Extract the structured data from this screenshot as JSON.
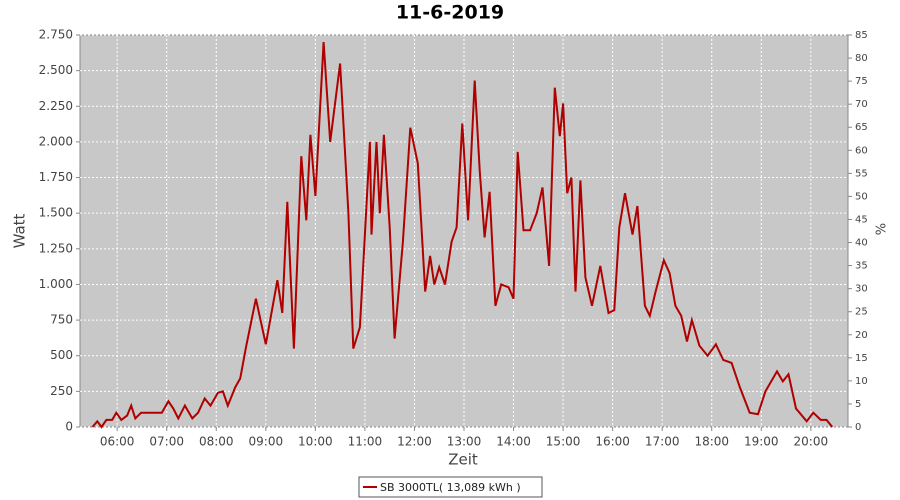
{
  "chart_data": {
    "type": "line",
    "title": "11-6-2019",
    "x_label": "Zeit",
    "y_label": "Watt",
    "y2_label": "%",
    "x": [
      "05:30",
      "05:36",
      "05:41",
      "05:47",
      "05:54",
      "05:59",
      "06:05",
      "06:12",
      "06:17",
      "06:22",
      "06:29",
      "06:38",
      "06:47",
      "06:54",
      "07:02",
      "07:08",
      "07:14",
      "07:22",
      "07:31",
      "07:38",
      "07:46",
      "07:53",
      "08:02",
      "08:08",
      "08:14",
      "08:23",
      "08:29",
      "08:36",
      "08:48",
      "09:00",
      "09:14",
      "09:20",
      "09:26",
      "09:34",
      "09:43",
      "09:49",
      "09:54",
      "10:00",
      "10:10",
      "10:18",
      "10:30",
      "10:40",
      "10:46",
      "10:54",
      "11:06",
      "11:08",
      "11:14",
      "11:18",
      "11:23",
      "11:30",
      "11:36",
      "11:46",
      "11:55",
      "12:04",
      "12:13",
      "12:19",
      "12:24",
      "12:30",
      "12:37",
      "12:45",
      "12:51",
      "12:58",
      "13:05",
      "13:13",
      "13:19",
      "13:25",
      "13:31",
      "13:38",
      "13:45",
      "13:54",
      "14:00",
      "14:05",
      "14:12",
      "14:20",
      "14:28",
      "14:35",
      "14:43",
      "14:50",
      "14:56",
      "15:00",
      "15:05",
      "15:10",
      "15:15",
      "15:21",
      "15:27",
      "15:35",
      "15:45",
      "15:55",
      "16:02",
      "16:08",
      "16:15",
      "16:24",
      "16:30",
      "16:39",
      "16:45",
      "16:52",
      "17:02",
      "17:09",
      "17:16",
      "17:23",
      "17:30",
      "17:36",
      "17:45",
      "17:55",
      "18:05",
      "18:14",
      "18:24",
      "18:34",
      "18:46",
      "18:56",
      "19:05",
      "19:19",
      "19:26",
      "19:33",
      "19:42",
      "19:55",
      "20:03",
      "20:12",
      "20:19",
      "20:26"
    ],
    "series": [
      {
        "name": "SB 3000TL( 13,089 kWh )",
        "color": "#b00000",
        "values": [
          0,
          40,
          0,
          50,
          50,
          100,
          50,
          80,
          150,
          60,
          100,
          100,
          100,
          100,
          180,
          130,
          60,
          150,
          60,
          100,
          200,
          150,
          240,
          250,
          150,
          280,
          340,
          560,
          900,
          580,
          1030,
          800,
          1580,
          550,
          1900,
          1450,
          2050,
          1620,
          2700,
          2000,
          2550,
          1500,
          550,
          700,
          2000,
          1350,
          2000,
          1500,
          2050,
          1400,
          620,
          1300,
          2100,
          1850,
          950,
          1200,
          1000,
          1120,
          1000,
          1300,
          1400,
          2130,
          1450,
          2430,
          1800,
          1330,
          1650,
          850,
          1000,
          980,
          900,
          1930,
          1380,
          1380,
          1500,
          1680,
          1130,
          2380,
          2040,
          2270,
          1640,
          1750,
          950,
          1730,
          1050,
          850,
          1130,
          800,
          820,
          1400,
          1640,
          1350,
          1550,
          850,
          780,
          950,
          1170,
          1080,
          850,
          780,
          600,
          750,
          570,
          500,
          580,
          470,
          450,
          280,
          100,
          90,
          250,
          390,
          320,
          370,
          130,
          40,
          100,
          50,
          50,
          0
        ]
      }
    ],
    "xlim": [
      "05:15",
      "20:45"
    ],
    "xticks": [
      "06:00",
      "07:00",
      "08:00",
      "09:00",
      "10:00",
      "11:00",
      "12:00",
      "13:00",
      "14:00",
      "15:00",
      "16:00",
      "17:00",
      "18:00",
      "19:00",
      "20:00"
    ],
    "ylim": [
      0,
      2750
    ],
    "yticks": [
      0,
      250,
      500,
      750,
      {
        "value": 1000,
        "label": "1.000"
      },
      {
        "value": 1250,
        "label": "1.250"
      },
      {
        "value": 1500,
        "label": "1.500"
      },
      {
        "value": 1750,
        "label": "1.750"
      },
      {
        "value": 2000,
        "label": "2.000"
      },
      {
        "value": 2250,
        "label": "2.250"
      },
      {
        "value": 2500,
        "label": "2.500"
      },
      {
        "value": 2750,
        "label": "2.750"
      }
    ],
    "y2lim": [
      0,
      85
    ],
    "y2ticks": [
      0,
      5,
      10,
      15,
      20,
      25,
      30,
      35,
      40,
      45,
      50,
      55,
      60,
      65,
      70,
      75,
      80,
      85
    ],
    "grid": true
  }
}
